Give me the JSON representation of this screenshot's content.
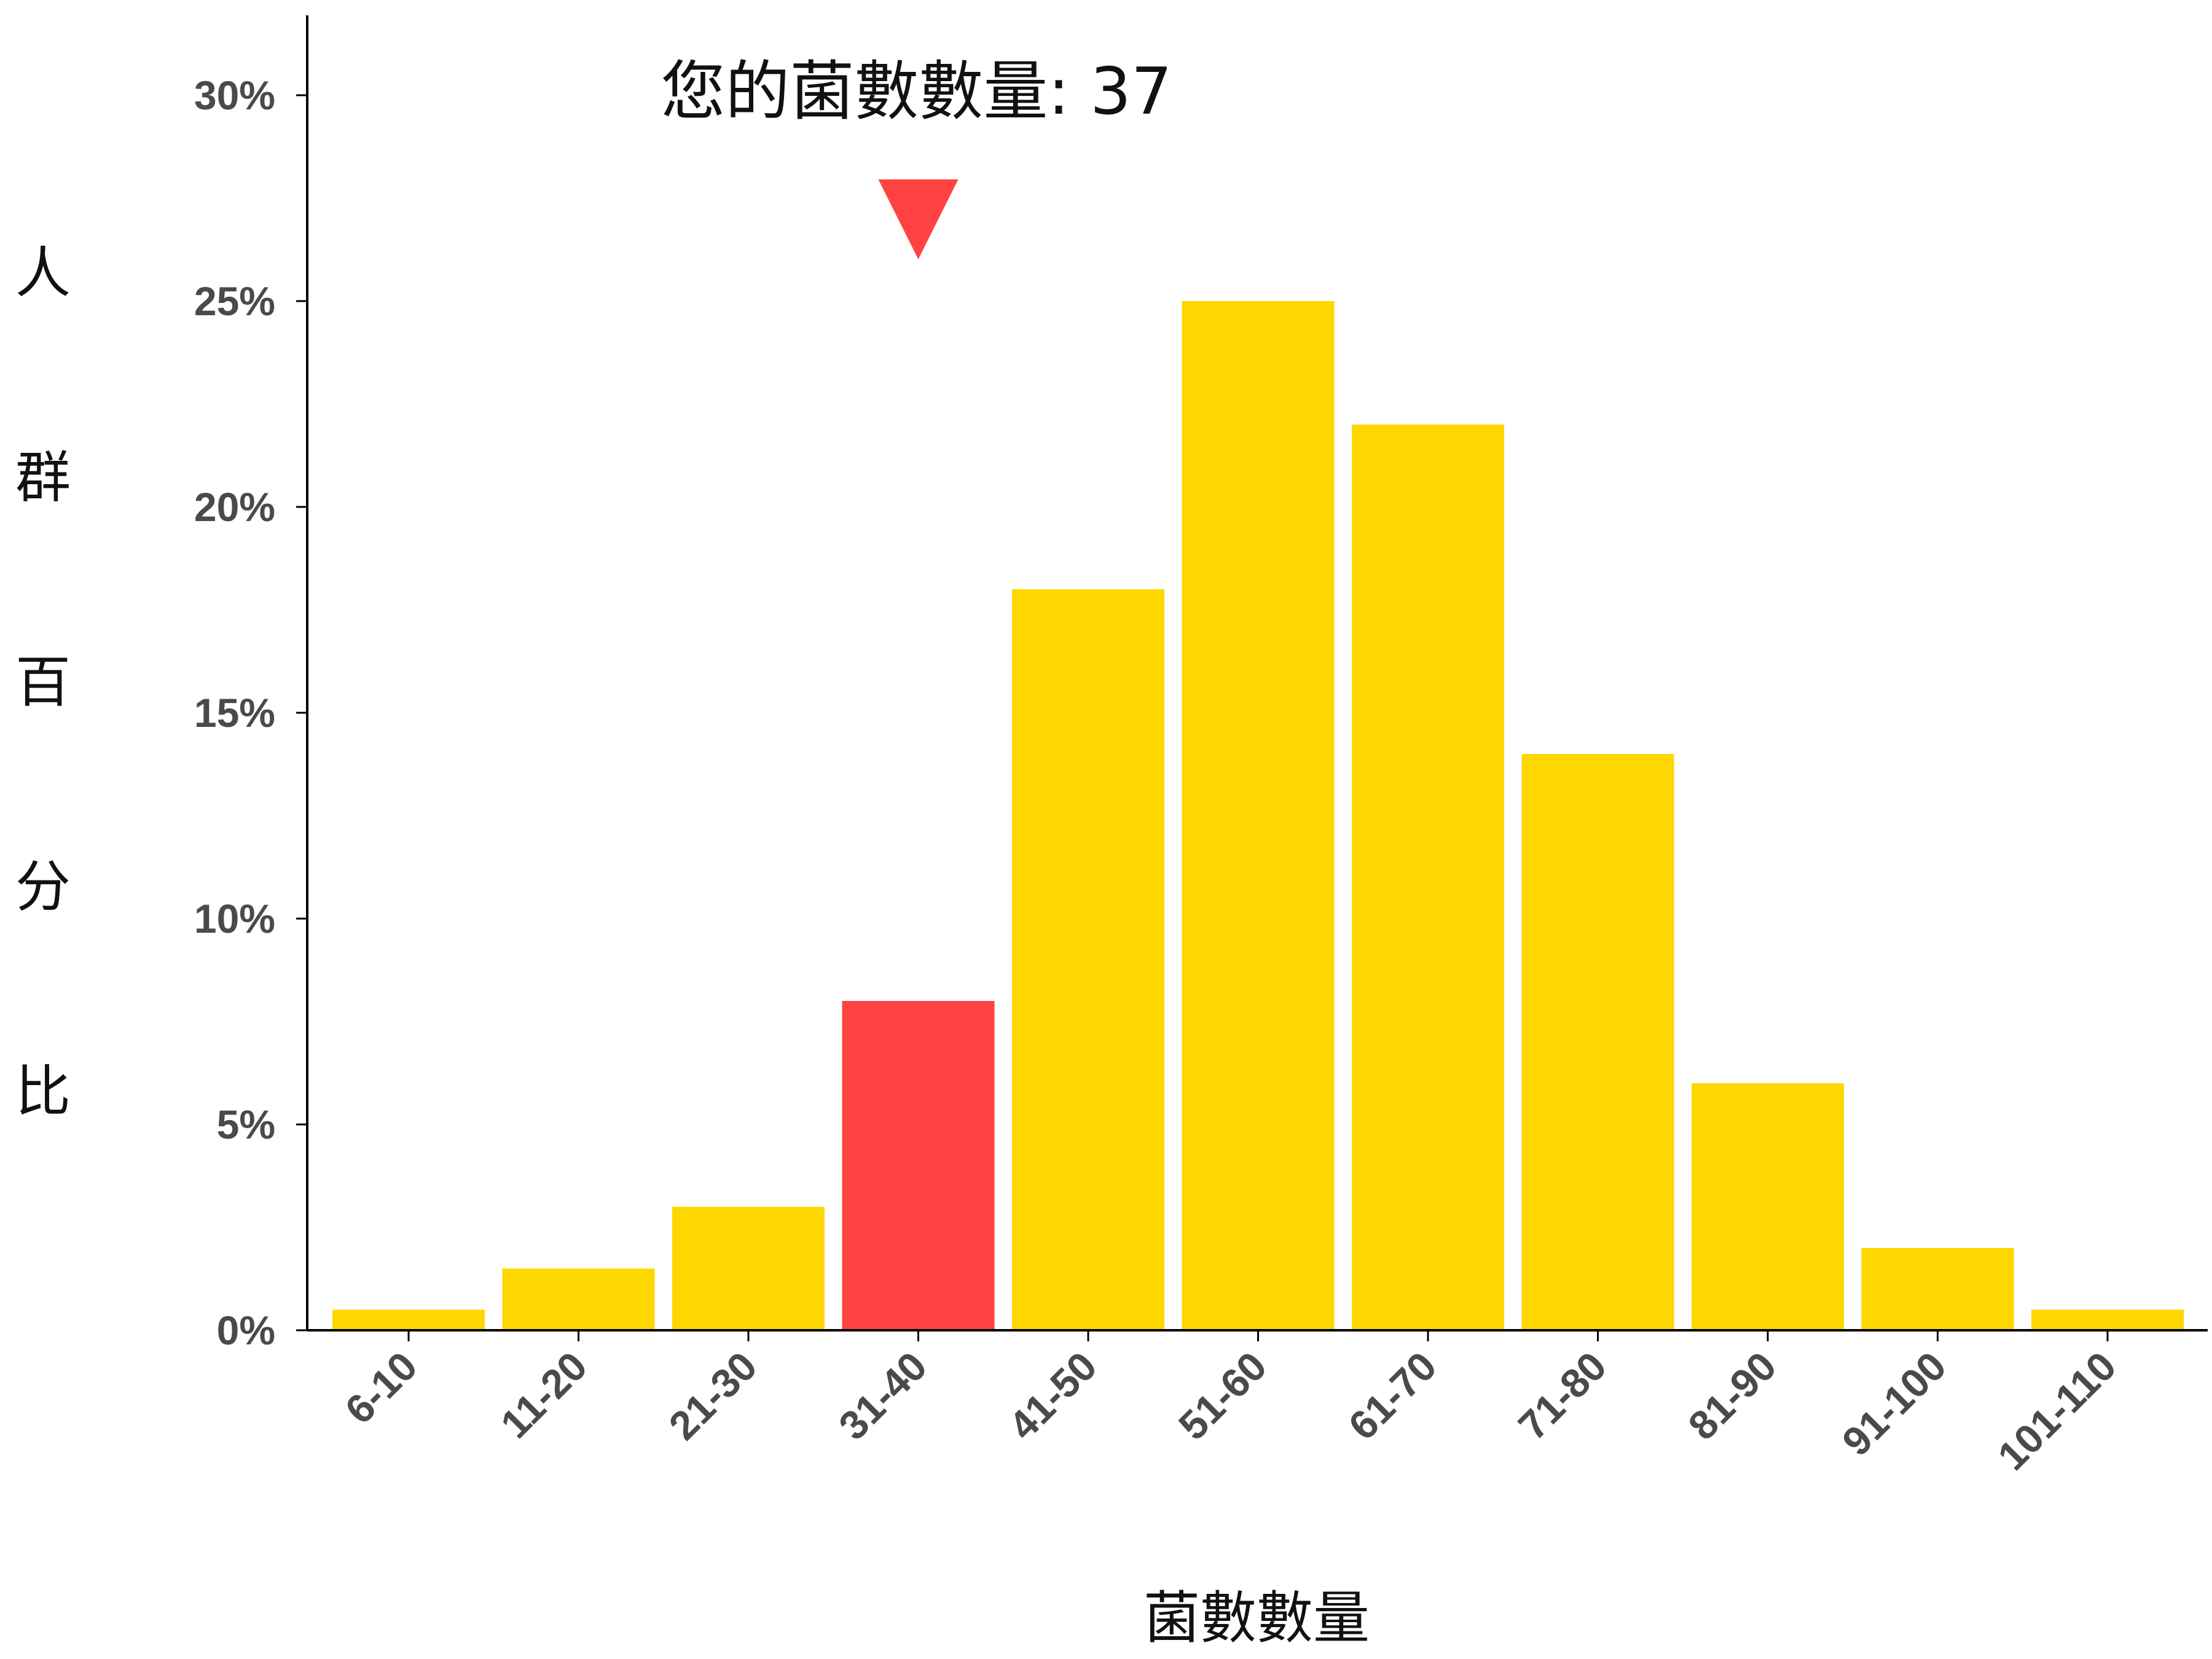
{
  "chart_data": {
    "type": "bar",
    "categories": [
      "6-10",
      "11-20",
      "21-30",
      "31-40",
      "41-50",
      "51-60",
      "61-70",
      "71-80",
      "81-90",
      "91-100",
      "101-110"
    ],
    "values": [
      0.5,
      1.5,
      3,
      8,
      18,
      25,
      22,
      14,
      6,
      2,
      0.5
    ],
    "highlight_index": 3,
    "annotation": "您的菌數數量: 37",
    "xlabel": "菌數數量",
    "ylabel_chars": [
      "人",
      "群",
      "百",
      "分",
      "比"
    ],
    "yticks": [
      "0%",
      "5%",
      "10%",
      "15%",
      "20%",
      "25%",
      "30%"
    ],
    "ylim": [
      0,
      30
    ],
    "bar_color": "#FFD700",
    "highlight_color": "#FF4343",
    "grid": false
  }
}
